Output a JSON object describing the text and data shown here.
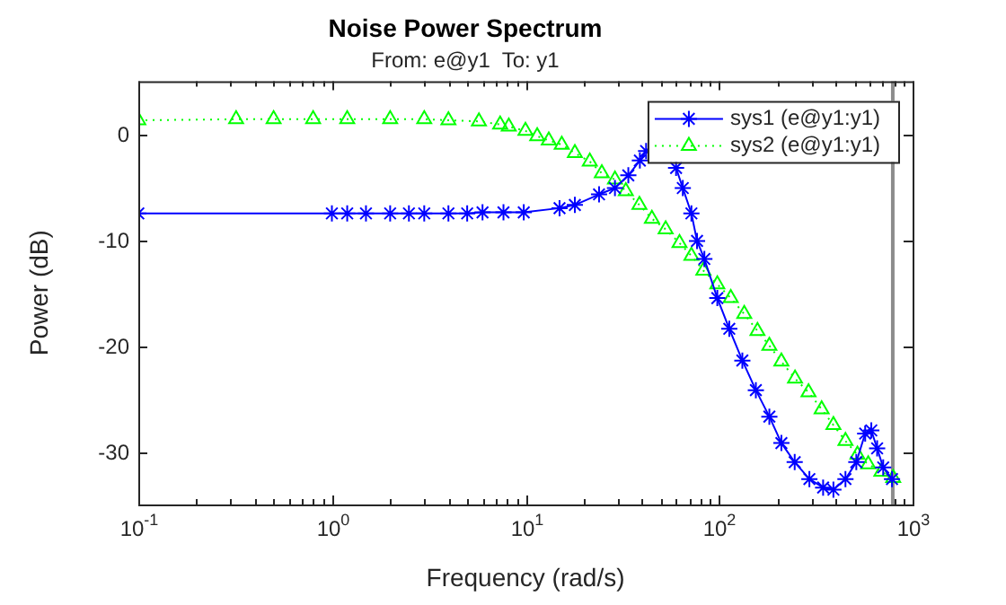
{
  "chart_data": {
    "type": "line",
    "title": "Noise Power Spectrum",
    "subtitle": "From: e@y1  To: y1",
    "xlabel": "Frequency (rad/s)",
    "ylabel": "Power (dB)",
    "series": [
      {
        "name": "sys1 (e@y1:y1)",
        "color": "#0000ff",
        "marker": "cross",
        "line_style": "solid",
        "x": [
          0.1,
          1,
          1.2,
          1.5,
          2,
          2.5,
          3,
          4,
          5,
          6,
          7.7,
          9.8,
          15,
          18,
          24,
          29,
          34,
          39,
          42,
          50,
          60,
          65,
          72,
          77,
          84,
          98,
          113,
          132,
          155,
          182,
          210,
          246,
          293,
          345,
          390,
          450,
          512,
          569,
          612,
          656,
          705,
          783
        ],
        "values": [
          -7.5,
          -7.5,
          -7.5,
          -7.5,
          -7.5,
          -7.5,
          -7.5,
          -7.5,
          -7.5,
          -7.4,
          -7.4,
          -7.4,
          -7.0,
          -6.7,
          -5.7,
          -5.1,
          -3.9,
          -2.5,
          -1.6,
          null,
          -3.2,
          -5.1,
          -7.5,
          -10.1,
          -11.8,
          -15.5,
          -18.4,
          -21.4,
          -24.2,
          -26.7,
          -29.2,
          -31.0,
          -32.6,
          -33.4,
          -33.6,
          -32.6,
          -31.0,
          -28.3,
          -28.0,
          -29.7,
          -31.5,
          -32.6
        ]
      },
      {
        "name": "sys2 (e@y1:y1)",
        "color": "#00ff00",
        "marker": "triangle",
        "line_style": "dotted",
        "x": [
          0.1,
          0.32,
          0.5,
          0.8,
          1.2,
          2,
          3,
          4,
          5.75,
          7.4,
          8.2,
          10,
          11.5,
          13.2,
          15.4,
          18,
          21.5,
          24.8,
          29,
          33,
          38.8,
          45,
          53,
          62.5,
          72,
          83,
          98,
          115,
          135,
          158,
          182,
          210,
          247,
          290,
          339,
          390,
          450,
          519,
          590,
          690,
          794
        ],
        "values": [
          1.3,
          1.4,
          1.4,
          1.4,
          1.4,
          1.4,
          1.4,
          1.3,
          1.2,
          0.9,
          0.7,
          0.3,
          -0.2,
          -0.6,
          -1.0,
          -1.8,
          -2.6,
          -3.7,
          -4.3,
          -5.4,
          -6.7,
          -8.0,
          -9.0,
          -10.3,
          -11.5,
          -12.9,
          -14.2,
          -15.5,
          -17.0,
          -18.6,
          -20.0,
          -21.5,
          -23.1,
          -24.4,
          -26.0,
          -27.5,
          -29.0,
          -30.3,
          -31.2,
          -31.9,
          -32.5
        ]
      }
    ],
    "log": "x",
    "xlim": [
      0.1,
      1000
    ],
    "xticks": [
      {
        "value": 0.1,
        "label": "10$^{-1}$"
      },
      {
        "value": 0.2,
        "label": null
      },
      {
        "value": 0.3,
        "label": null
      },
      {
        "value": 0.4,
        "label": null
      },
      {
        "value": 0.5,
        "label": null
      },
      {
        "value": 0.6,
        "label": null
      },
      {
        "value": 0.7,
        "label": null
      },
      {
        "value": 0.8,
        "label": null
      },
      {
        "value": 0.9,
        "label": null
      },
      {
        "value": 1,
        "label": "10$^{0}$"
      },
      {
        "value": 2,
        "label": null
      },
      {
        "value": 3,
        "label": null
      },
      {
        "value": 4,
        "label": null
      },
      {
        "value": 5,
        "label": null
      },
      {
        "value": 6,
        "label": null
      },
      {
        "value": 7,
        "label": null
      },
      {
        "value": 8,
        "label": null
      },
      {
        "value": 9,
        "label": null
      },
      {
        "value": 10,
        "label": "10$^{1}$"
      },
      {
        "value": 20,
        "label": null
      },
      {
        "value": 30,
        "label": null
      },
      {
        "value": 40,
        "label": null
      },
      {
        "value": 50,
        "label": null
      },
      {
        "value": 60,
        "label": null
      },
      {
        "value": 70,
        "label": null
      },
      {
        "value": 80,
        "label": null
      },
      {
        "value": 90,
        "label": null
      },
      {
        "value": 100,
        "label": "10$^{2}$"
      },
      {
        "value": 200,
        "label": null
      },
      {
        "value": 300,
        "label": null
      },
      {
        "value": 400,
        "label": null
      },
      {
        "value": 500,
        "label": null
      },
      {
        "value": 600,
        "label": null
      },
      {
        "value": 700,
        "label": null
      },
      {
        "value": 800,
        "label": null
      },
      {
        "value": 900,
        "label": null
      },
      {
        "value": 1000,
        "label": "10$^{3}$"
      }
    ],
    "ylim": [
      -35,
      5
    ],
    "yticks": [
      -30,
      -20,
      -10,
      0
    ],
    "ref_lines": [
      {
        "axis": "x",
        "value": 790,
        "color": "#8c8c8c"
      }
    ],
    "grid": false,
    "legend": "top right"
  }
}
